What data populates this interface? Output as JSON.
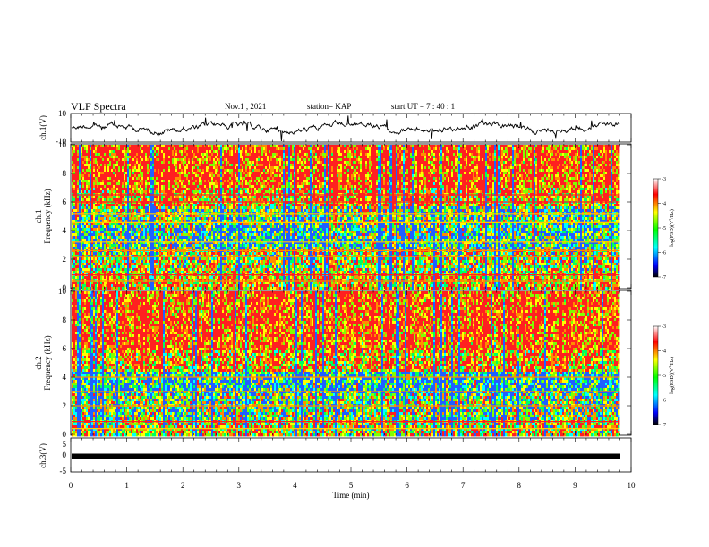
{
  "header": {
    "title": "VLF Spectra",
    "date": "Nov.1 , 2021",
    "station": "station= KAP",
    "start_ut": "start UT = 7 : 40 : 1"
  },
  "chart_data": [
    {
      "type": "line",
      "panel": "ch.1 waveform",
      "ylabel": "ch.1(V)",
      "ylim": [
        -10,
        10
      ],
      "y_ticks": [
        "10",
        "-10"
      ],
      "xlim": [
        0,
        10
      ]
    },
    {
      "type": "heatmap",
      "panel": "ch.1 spectrogram",
      "ylabel": "ch.1\nFrequency (kHz)",
      "ylim": [
        0,
        10
      ],
      "y_ticks": [
        "0",
        "2",
        "4",
        "6",
        "8",
        "10"
      ],
      "xlim": [
        0,
        9.8
      ],
      "colorbar": {
        "label": "log(PSD)(V²/Hz)",
        "range": [
          -7,
          -3
        ],
        "ticks": [
          "-3",
          "-4",
          "-5",
          "-6",
          "-7"
        ]
      }
    },
    {
      "type": "heatmap",
      "panel": "ch.2 spectrogram",
      "ylabel": "ch.2\nFrequency (kHz)",
      "ylim": [
        0,
        10
      ],
      "y_ticks": [
        "0",
        "2",
        "4",
        "6",
        "8",
        "10"
      ],
      "xlim": [
        0,
        9.8
      ],
      "colorbar": {
        "label": "log(PSD)(V²/Hz)",
        "range": [
          -7,
          -3
        ],
        "ticks": [
          "-3",
          "-4",
          "-5",
          "-6",
          "-7"
        ]
      }
    },
    {
      "type": "line",
      "panel": "ch.3 waveform",
      "ylabel": "ch.3(V)",
      "ylim": [
        -5,
        5
      ],
      "y_ticks": [
        "5",
        "0",
        "-5"
      ],
      "xlim": [
        0,
        10
      ],
      "xlabel": "Time (min)",
      "x_ticks": [
        "0",
        "1",
        "2",
        "3",
        "4",
        "5",
        "6",
        "7",
        "8",
        "9",
        "10"
      ]
    }
  ]
}
